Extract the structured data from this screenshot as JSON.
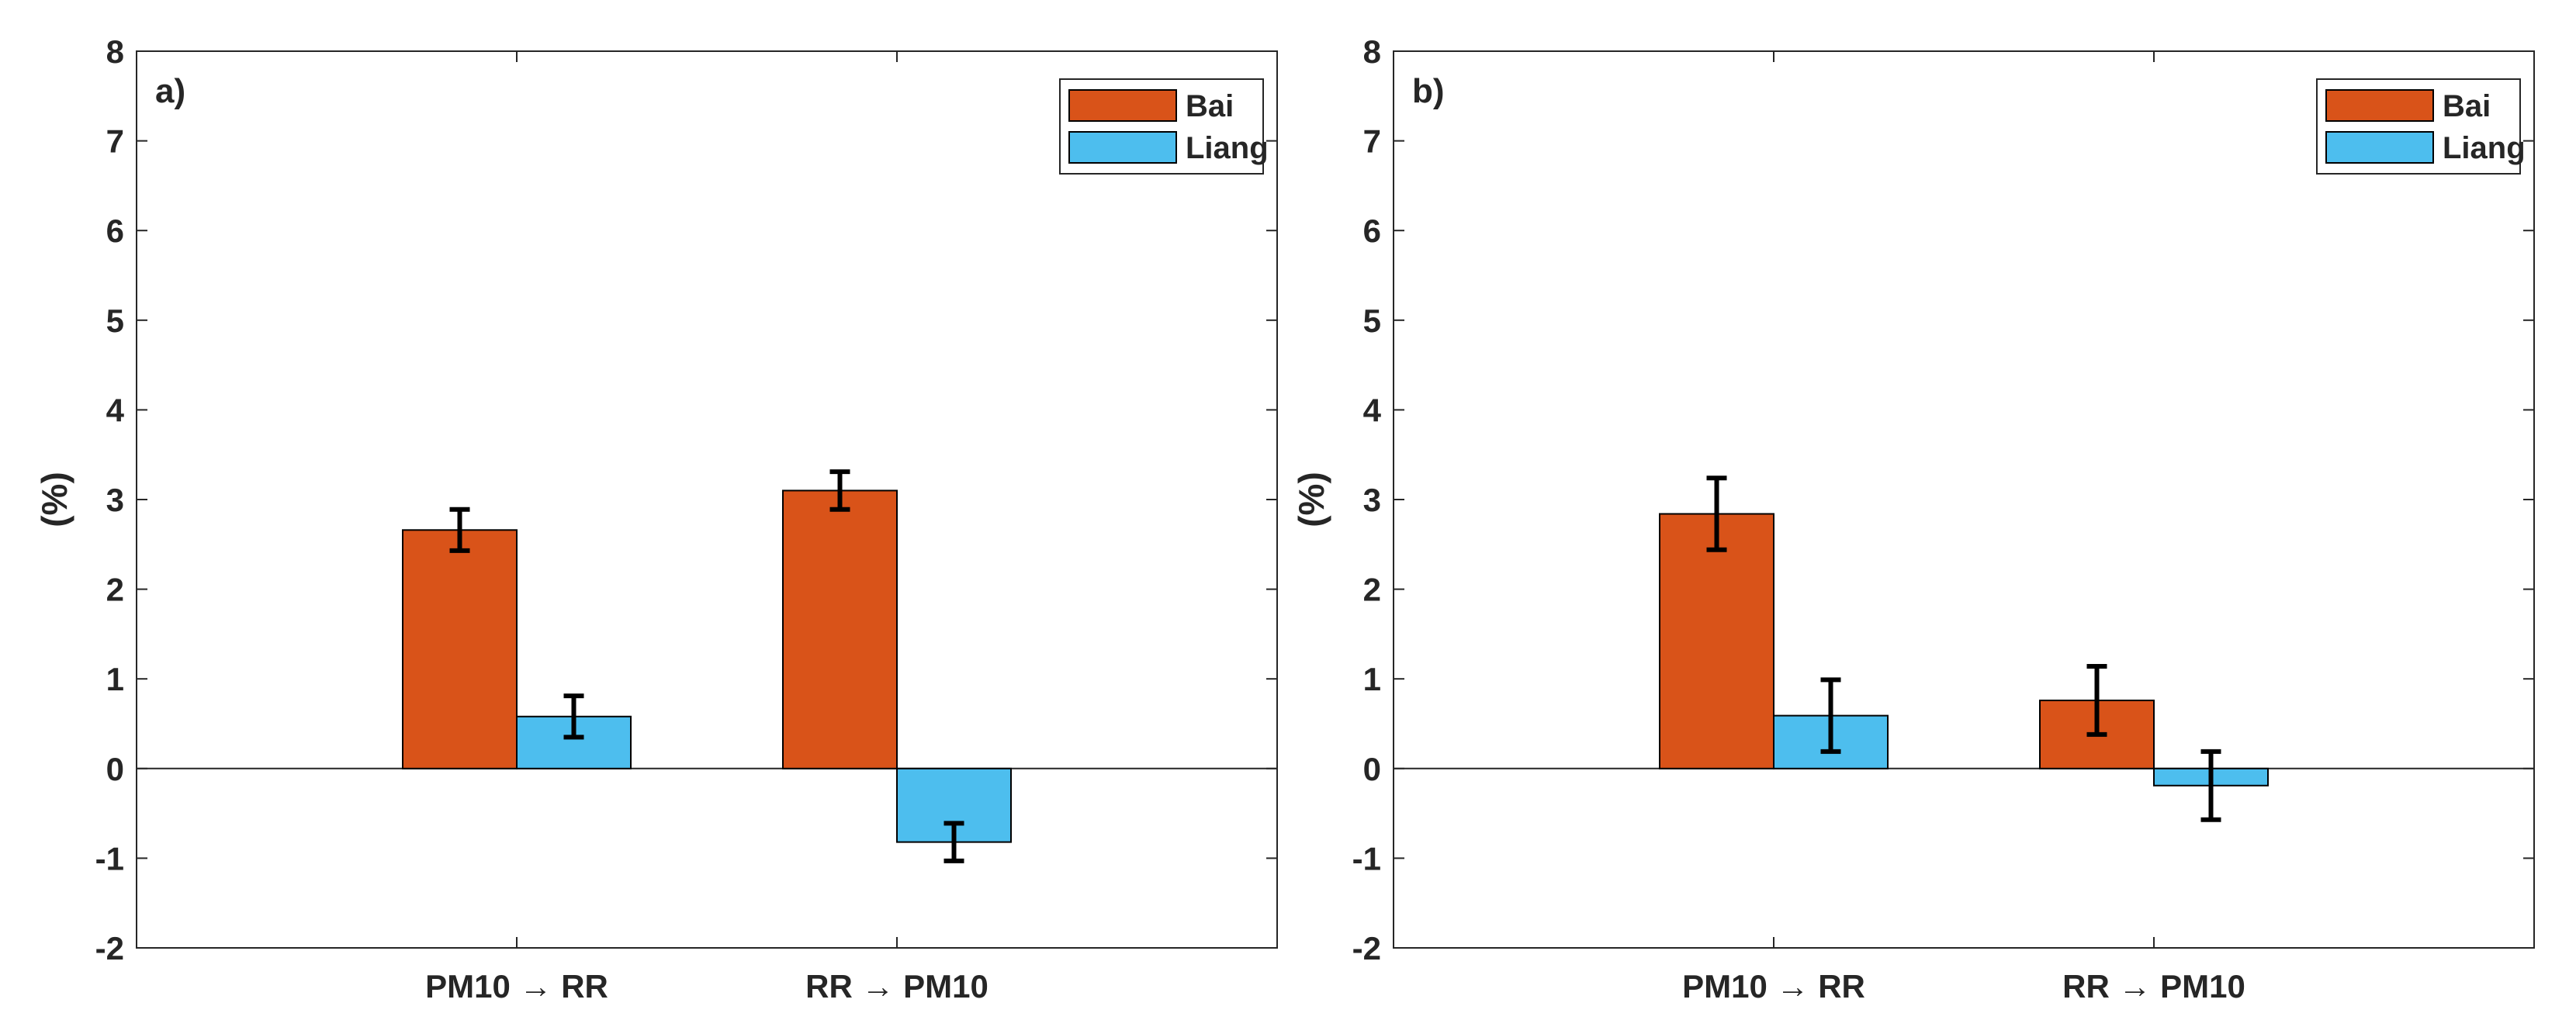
{
  "chart_data": [
    {
      "type": "bar",
      "panel_label": "a)",
      "ylabel": "(%)",
      "xlabel": "",
      "categories": [
        "PM10 → RR",
        "RR → PM10"
      ],
      "ylim": [
        -2,
        8
      ],
      "yticks": [
        -2,
        -1,
        0,
        1,
        2,
        3,
        4,
        5,
        6,
        7,
        8
      ],
      "xlim": [
        0,
        3
      ],
      "legend_position": "top-right",
      "series": [
        {
          "name": "Bai",
          "color": "#D95319",
          "values": [
            2.66,
            3.1
          ],
          "errors": [
            0.23,
            0.21
          ]
        },
        {
          "name": "Liang",
          "color": "#4DBEEE",
          "values": [
            0.58,
            -0.82
          ],
          "errors": [
            0.23,
            0.21
          ]
        }
      ]
    },
    {
      "type": "bar",
      "panel_label": "b)",
      "ylabel": "(%)",
      "xlabel": "",
      "categories": [
        "PM10 → RR",
        "RR → PM10"
      ],
      "ylim": [
        -2,
        8
      ],
      "yticks": [
        -2,
        -1,
        0,
        1,
        2,
        3,
        4,
        5,
        6,
        7,
        8
      ],
      "xlim": [
        0,
        3
      ],
      "legend_position": "top-right",
      "series": [
        {
          "name": "Bai",
          "color": "#D95319",
          "values": [
            2.84,
            0.76
          ],
          "errors": [
            0.4,
            0.38
          ]
        },
        {
          "name": "Liang",
          "color": "#4DBEEE",
          "values": [
            0.59,
            -0.19
          ],
          "errors": [
            0.4,
            0.38
          ]
        }
      ]
    }
  ]
}
